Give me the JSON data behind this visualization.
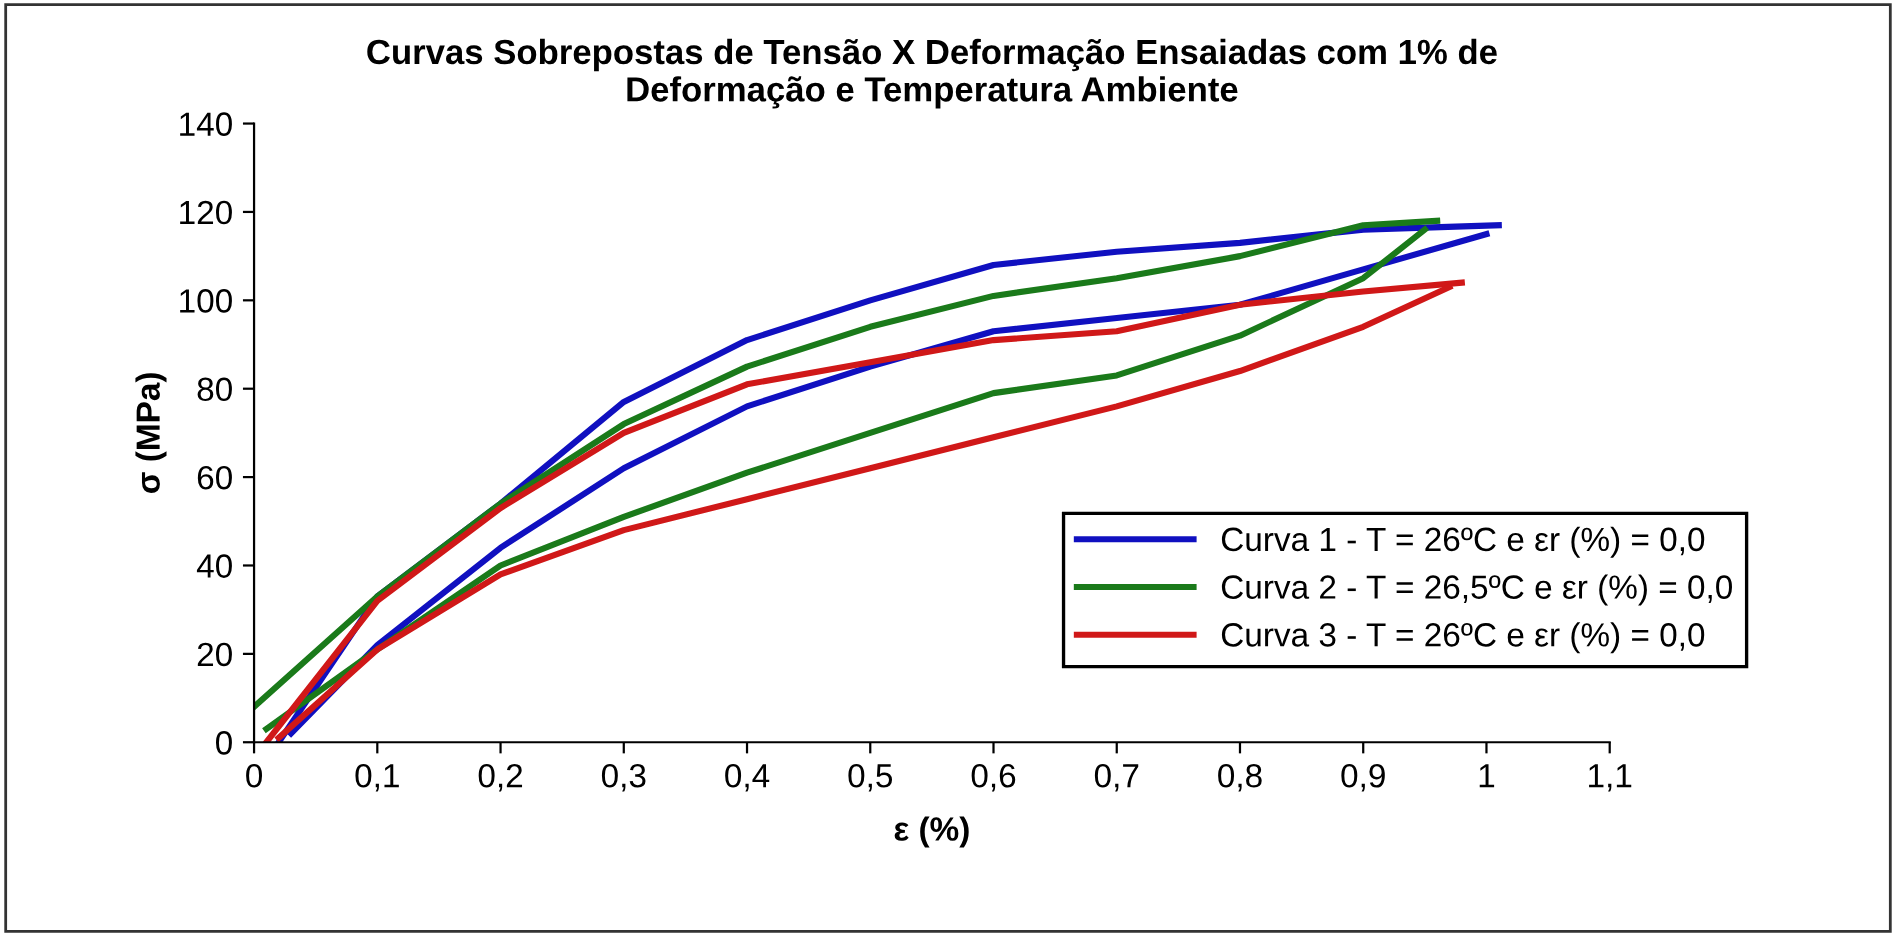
{
  "chart_data": {
    "type": "line",
    "title": "Curvas Sobrepostas de Tensão X Deformação Ensaiadas com 1% de\nDeformação e Temperatura Ambiente",
    "xlabel": "ε (%)",
    "ylabel": "σ (MPa)",
    "xlim": [
      0,
      1.1
    ],
    "ylim": [
      0,
      140
    ],
    "xticks": [
      0,
      {
        "value": 0.1,
        "label": "0,1"
      },
      {
        "value": 0.2,
        "label": "0,2"
      },
      {
        "value": 0.3,
        "label": "0,3"
      },
      {
        "value": 0.4,
        "label": "0,4"
      },
      {
        "value": 0.5,
        "label": "0,5"
      },
      {
        "value": 0.6,
        "label": "0,6"
      },
      {
        "value": 0.7,
        "label": "0,7"
      },
      {
        "value": 0.8,
        "label": "0,8"
      },
      {
        "value": 0.9,
        "label": "0,9"
      },
      1,
      {
        "value": 1.1,
        "label": "1,1"
      }
    ],
    "yticks": [
      0,
      20,
      40,
      60,
      80,
      100,
      120,
      140
    ],
    "grid": false,
    "legend": "bottom right",
    "marker": "none",
    "line_style": "solid",
    "series": [
      {
        "name": "Curva 1 - T = 26ºC e εr (%) = 0,0",
        "color": "#1010c0",
        "x": [
          0.02,
          0.1,
          0.2,
          0.3,
          0.4,
          0.5,
          0.6,
          0.7,
          0.8,
          0.9,
          1.01
        ],
        "values": [
          0,
          33,
          54,
          77,
          91,
          100,
          108,
          111,
          113,
          116,
          117
        ]
      },
      {
        "color": "#1010c0",
        "x": [
          0.03,
          0.1,
          0.2,
          0.3,
          0.4,
          0.5,
          0.6,
          0.7,
          0.8,
          0.9,
          1.0
        ],
        "values": [
          2,
          22,
          44,
          62,
          76,
          85,
          93,
          96,
          99,
          107,
          115
        ]
      },
      {
        "name": "Curva 2 - T = 26,5ºC e εr (%) = 0,0",
        "color": "#1a7a1a",
        "x": [
          0.0,
          0.1,
          0.2,
          0.3,
          0.4,
          0.5,
          0.6,
          0.7,
          0.8,
          0.9,
          0.96
        ],
        "values": [
          8,
          33,
          54,
          72,
          85,
          94,
          101,
          105,
          110,
          117,
          118
        ]
      },
      {
        "color": "#1a7a1a",
        "x": [
          0.01,
          0.1,
          0.2,
          0.3,
          0.4,
          0.5,
          0.6,
          0.7,
          0.8,
          0.9,
          0.95
        ],
        "values": [
          3,
          21,
          40,
          51,
          61,
          70,
          79,
          83,
          92,
          105,
          116
        ]
      },
      {
        "name": "Curva 3 - T = 26ºC e εr (%) = 0,0",
        "color": "#d01818",
        "x": [
          0.01,
          0.1,
          0.2,
          0.3,
          0.4,
          0.5,
          0.6,
          0.7,
          0.8,
          0.9,
          0.98
        ],
        "values": [
          0,
          32,
          53,
          70,
          81,
          86,
          91,
          93,
          99,
          102,
          104
        ]
      },
      {
        "color": "#d01818",
        "x": [
          0.02,
          0.1,
          0.2,
          0.3,
          0.4,
          0.5,
          0.6,
          0.7,
          0.8,
          0.9,
          0.97
        ],
        "values": [
          1,
          21,
          38,
          48,
          55,
          62,
          69,
          76,
          84,
          94,
          103
        ]
      }
    ]
  }
}
